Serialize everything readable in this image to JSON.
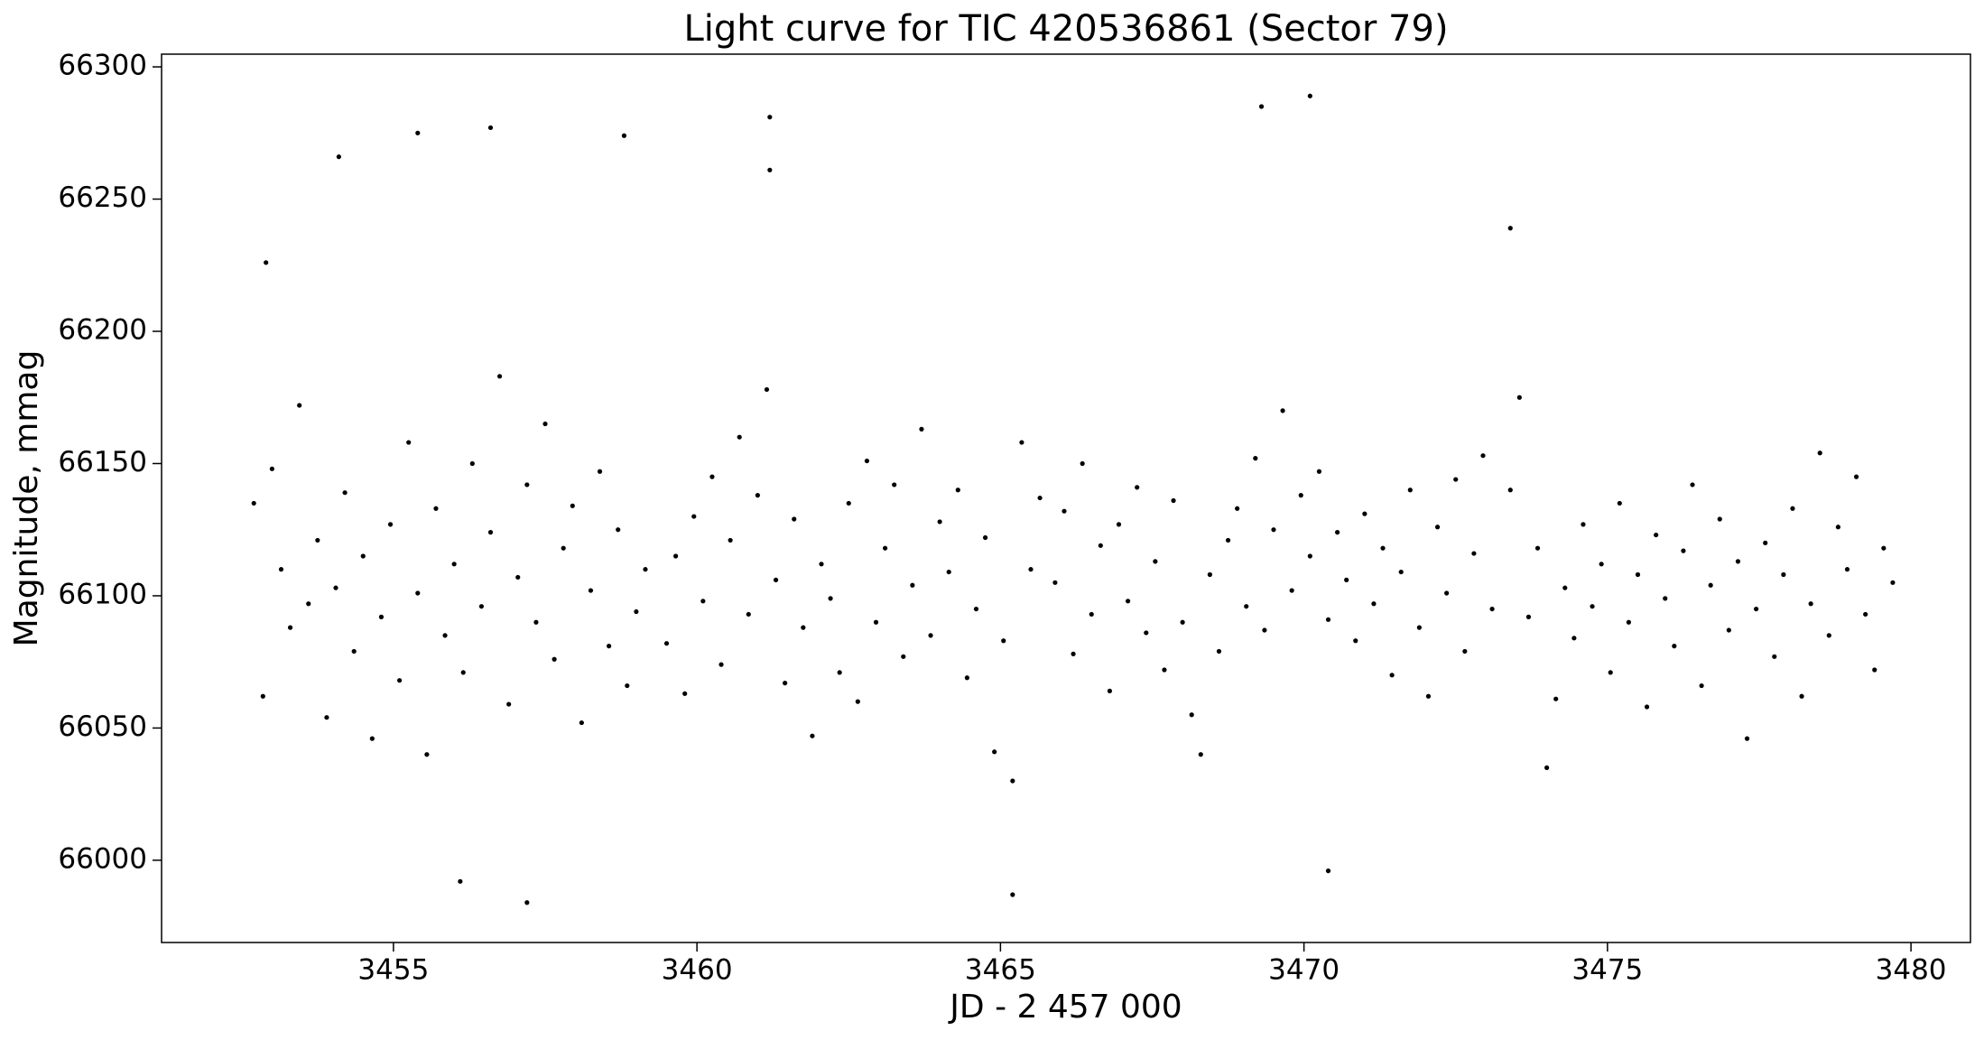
{
  "chart_data": {
    "type": "scatter",
    "title": "Light curve for TIC 420536861 (Sector 79)",
    "xlabel": "JD - 2 457 000",
    "ylabel": "Magnitude, mmag",
    "color": "#000000",
    "xlim": [
      3451.18,
      3480.98
    ],
    "ylim": [
      65968.9,
      66304.8
    ],
    "xticks": [
      3455,
      3460,
      3465,
      3470,
      3475,
      3480
    ],
    "yticks": [
      66000,
      66050,
      66100,
      66150,
      66200,
      66250,
      66300
    ],
    "x": [
      3452.7,
      3452.85,
      3453,
      3453.15,
      3453.3,
      3453.45,
      3453.6,
      3453.75,
      3453.9,
      3454.05,
      3454.2,
      3454.35,
      3454.5,
      3454.65,
      3454.8,
      3454.95,
      3455.1,
      3455.25,
      3455.4,
      3455.55,
      3455.7,
      3455.85,
      3456,
      3456.15,
      3456.3,
      3456.45,
      3456.6,
      3456.75,
      3456.9,
      3457.05,
      3457.2,
      3457.35,
      3457.5,
      3457.65,
      3457.8,
      3457.95,
      3458.1,
      3458.25,
      3458.4,
      3458.55,
      3458.7,
      3458.85,
      3459,
      3459.15,
      3459.5,
      3459.65,
      3459.8,
      3459.95,
      3460.1,
      3460.25,
      3460.4,
      3460.55,
      3460.7,
      3460.85,
      3461,
      3461.15,
      3461.3,
      3461.45,
      3461.6,
      3461.75,
      3461.9,
      3462.05,
      3462.2,
      3462.35,
      3462.5,
      3462.65,
      3462.8,
      3462.95,
      3463.1,
      3463.25,
      3463.4,
      3463.55,
      3463.7,
      3463.85,
      3464,
      3464.15,
      3464.3,
      3464.45,
      3464.6,
      3464.75,
      3464.9,
      3465.05,
      3465.2,
      3465.35,
      3465.5,
      3465.65,
      3465.9,
      3466.05,
      3466.2,
      3466.35,
      3466.5,
      3466.65,
      3466.8,
      3466.95,
      3467.1,
      3467.25,
      3467.4,
      3467.55,
      3467.7,
      3467.85,
      3468,
      3468.15,
      3468.3,
      3468.45,
      3468.6,
      3468.75,
      3468.9,
      3469.05,
      3469.2,
      3469.35,
      3469.5,
      3469.65,
      3469.8,
      3469.95,
      3470.1,
      3470.25,
      3470.4,
      3470.55,
      3470.7,
      3470.85,
      3471,
      3471.15,
      3471.3,
      3471.45,
      3471.6,
      3471.75,
      3471.9,
      3472.05,
      3472.2,
      3472.35,
      3472.5,
      3472.65,
      3472.8,
      3472.95,
      3473.1,
      3473.4,
      3473.55,
      3473.7,
      3473.85,
      3474,
      3474.15,
      3474.3,
      3474.45,
      3474.6,
      3474.75,
      3474.9,
      3475.05,
      3475.2,
      3475.35,
      3475.5,
      3475.65,
      3475.8,
      3475.95,
      3476.1,
      3476.25,
      3476.4,
      3476.55,
      3476.7,
      3476.85,
      3477,
      3477.15,
      3477.3,
      3477.45,
      3477.6,
      3477.75,
      3477.9,
      3478.05,
      3478.2,
      3478.35,
      3478.5,
      3478.65,
      3478.8,
      3478.95,
      3479.1,
      3479.25,
      3479.4,
      3479.55,
      3479.7,
      3454.1,
      3455.4,
      3456.6,
      3458.8,
      3461.2,
      3461.2,
      3469.3,
      3470.1,
      3457.2,
      3465.2,
      3456.1,
      3470.4,
      3452.9,
      3473.4
    ],
    "values": [
      66135,
      66062,
      66148,
      66110,
      66088,
      66172,
      66097,
      66121,
      66054,
      66103,
      66139,
      66079,
      66115,
      66046,
      66092,
      66127,
      66068,
      66158,
      66101,
      66040,
      66133,
      66085,
      66112,
      66071,
      66150,
      66096,
      66124,
      66183,
      66059,
      66107,
      66142,
      66090,
      66165,
      66076,
      66118,
      66134,
      66052,
      66102,
      66147,
      66081,
      66125,
      66066,
      66094,
      66110,
      66082,
      66115,
      66063,
      66130,
      66098,
      66145,
      66074,
      66121,
      66160,
      66093,
      66138,
      66178,
      66106,
      66067,
      66129,
      66088,
      66047,
      66112,
      66099,
      66071,
      66135,
      66060,
      66151,
      66090,
      66118,
      66142,
      66077,
      66104,
      66163,
      66085,
      66128,
      66109,
      66140,
      66069,
      66095,
      66122,
      66041,
      66083,
      66030,
      66158,
      66110,
      66137,
      66105,
      66132,
      66078,
      66150,
      66093,
      66119,
      66064,
      66127,
      66098,
      66141,
      66086,
      66113,
      66072,
      66136,
      66090,
      66055,
      66040,
      66108,
      66079,
      66121,
      66133,
      66096,
      66152,
      66087,
      66125,
      66170,
      66102,
      66138,
      66115,
      66147,
      66091,
      66124,
      66106,
      66083,
      66131,
      66097,
      66118,
      66070,
      66109,
      66140,
      66088,
      66062,
      66126,
      66101,
      66144,
      66079,
      66116,
      66153,
      66095,
      66140,
      66175,
      66092,
      66118,
      66035,
      66061,
      66103,
      66084,
      66127,
      66096,
      66112,
      66071,
      66135,
      66090,
      66108,
      66058,
      66123,
      66099,
      66081,
      66117,
      66142,
      66066,
      66104,
      66129,
      66087,
      66113,
      66046,
      66095,
      66120,
      66077,
      66108,
      66133,
      66062,
      66097,
      66154,
      66085,
      66126,
      66110,
      66145,
      66093,
      66072,
      66118,
      66105,
      66266,
      66275,
      66277,
      66274,
      66281,
      66261,
      66285,
      66289,
      65984,
      65987,
      65992,
      65996,
      66226,
      66239
    ]
  }
}
